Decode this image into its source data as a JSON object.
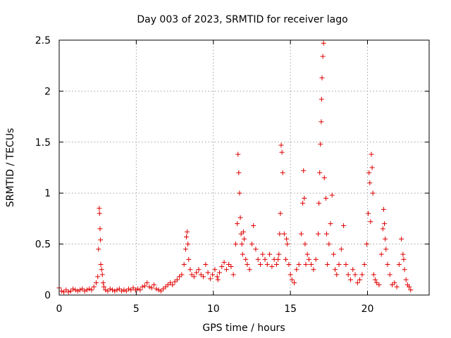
{
  "chart_data": {
    "type": "scatter",
    "title": "Day 003 of 2023, SRMTID for receiver lago",
    "xlabel": "GPS time / hours",
    "ylabel": "SRMTID / TECUs",
    "xlim": [
      0,
      24
    ],
    "ylim": [
      0,
      2.5
    ],
    "grid": true,
    "marker": "+",
    "color": "#e00000",
    "x_ticks": [
      0,
      5,
      10,
      15,
      20
    ],
    "x_tick_labels": [
      "0",
      "5",
      "10",
      "15",
      "20"
    ],
    "y_ticks": [
      0,
      0.5,
      1,
      1.5,
      2,
      2.5
    ],
    "y_tick_labels": [
      "0",
      "0.5",
      "1",
      "1.5",
      "2",
      "2.5"
    ],
    "series": [
      {
        "name": "SRMTID",
        "x": [
          0.0,
          0.15,
          0.3,
          0.45,
          0.6,
          0.75,
          0.9,
          1.05,
          1.2,
          1.35,
          1.5,
          1.65,
          1.8,
          1.95,
          2.1,
          2.25,
          2.4,
          2.5,
          2.55,
          2.6,
          2.62,
          2.65,
          2.68,
          2.7,
          2.75,
          2.8,
          2.85,
          2.9,
          3.0,
          3.15,
          3.3,
          3.45,
          3.6,
          3.75,
          3.9,
          4.05,
          4.2,
          4.35,
          4.5,
          4.65,
          4.8,
          4.95,
          5.1,
          5.25,
          5.4,
          5.55,
          5.7,
          5.85,
          6.0,
          6.15,
          6.3,
          6.45,
          6.6,
          6.75,
          6.9,
          7.05,
          7.2,
          7.35,
          7.5,
          7.65,
          7.8,
          7.95,
          8.1,
          8.2,
          8.25,
          8.3,
          8.35,
          8.4,
          8.5,
          8.6,
          8.75,
          8.9,
          9.05,
          9.2,
          9.35,
          9.5,
          9.65,
          9.8,
          9.95,
          10.1,
          10.25,
          10.3,
          10.4,
          10.55,
          10.7,
          10.85,
          11.0,
          11.15,
          11.3,
          11.45,
          11.55,
          11.6,
          11.65,
          11.7,
          11.75,
          11.8,
          11.85,
          11.9,
          11.95,
          12.0,
          12.1,
          12.2,
          12.35,
          12.5,
          12.6,
          12.75,
          12.9,
          13.05,
          13.2,
          13.35,
          13.5,
          13.65,
          13.8,
          13.95,
          14.1,
          14.2,
          14.25,
          14.3,
          14.35,
          14.4,
          14.45,
          14.5,
          14.6,
          14.7,
          14.75,
          14.8,
          14.9,
          15.0,
          15.1,
          15.25,
          15.4,
          15.55,
          15.7,
          15.8,
          15.85,
          15.9,
          15.95,
          16.0,
          16.1,
          16.2,
          16.35,
          16.5,
          16.65,
          16.8,
          16.85,
          16.9,
          16.95,
          17.0,
          17.02,
          17.05,
          17.1,
          17.15,
          17.2,
          17.3,
          17.35,
          17.4,
          17.5,
          17.6,
          17.7,
          17.8,
          17.9,
          18.0,
          18.15,
          18.3,
          18.45,
          18.6,
          18.75,
          18.9,
          19.05,
          19.2,
          19.35,
          19.5,
          19.65,
          19.8,
          19.95,
          20.05,
          20.1,
          20.15,
          20.2,
          20.25,
          20.3,
          20.35,
          20.4,
          20.5,
          20.6,
          20.75,
          20.9,
          21.0,
          21.05,
          21.1,
          21.15,
          21.2,
          21.3,
          21.45,
          21.6,
          21.75,
          21.9,
          22.05,
          22.2,
          22.3,
          22.35,
          22.4,
          22.5,
          22.6,
          22.7,
          22.8
        ],
        "values": [
          0.07,
          0.04,
          0.03,
          0.05,
          0.03,
          0.04,
          0.06,
          0.05,
          0.04,
          0.05,
          0.06,
          0.04,
          0.05,
          0.06,
          0.05,
          0.08,
          0.12,
          0.18,
          0.45,
          0.85,
          0.8,
          0.65,
          0.54,
          0.3,
          0.25,
          0.2,
          0.12,
          0.08,
          0.05,
          0.04,
          0.06,
          0.05,
          0.04,
          0.05,
          0.06,
          0.04,
          0.05,
          0.04,
          0.06,
          0.05,
          0.07,
          0.05,
          0.06,
          0.05,
          0.08,
          0.09,
          0.12,
          0.08,
          0.07,
          0.1,
          0.06,
          0.05,
          0.04,
          0.06,
          0.08,
          0.1,
          0.12,
          0.1,
          0.13,
          0.15,
          0.18,
          0.2,
          0.3,
          0.45,
          0.57,
          0.62,
          0.5,
          0.35,
          0.25,
          0.2,
          0.18,
          0.22,
          0.25,
          0.2,
          0.18,
          0.3,
          0.22,
          0.16,
          0.2,
          0.25,
          0.18,
          0.15,
          0.22,
          0.28,
          0.32,
          0.25,
          0.3,
          0.28,
          0.2,
          0.5,
          0.7,
          1.38,
          1.2,
          1.0,
          0.76,
          0.6,
          0.5,
          0.4,
          0.62,
          0.55,
          0.35,
          0.3,
          0.25,
          0.5,
          0.68,
          0.45,
          0.35,
          0.3,
          0.4,
          0.35,
          0.3,
          0.4,
          0.28,
          0.35,
          0.3,
          0.35,
          0.4,
          0.6,
          0.8,
          1.47,
          1.4,
          1.2,
          0.6,
          0.35,
          0.55,
          0.5,
          0.3,
          0.2,
          0.15,
          0.12,
          0.25,
          0.3,
          0.6,
          0.9,
          1.22,
          0.95,
          0.5,
          0.3,
          0.4,
          0.35,
          0.3,
          0.25,
          0.35,
          0.6,
          0.9,
          1.2,
          1.48,
          1.7,
          1.92,
          2.13,
          2.34,
          2.47,
          1.15,
          0.95,
          0.6,
          0.3,
          0.5,
          0.7,
          0.98,
          0.4,
          0.25,
          0.2,
          0.3,
          0.45,
          0.68,
          0.3,
          0.2,
          0.15,
          0.25,
          0.2,
          0.12,
          0.15,
          0.2,
          0.3,
          0.5,
          0.8,
          1.2,
          1.1,
          0.72,
          1.38,
          1.25,
          1.0,
          0.2,
          0.15,
          0.12,
          0.1,
          0.4,
          0.65,
          0.84,
          0.7,
          0.55,
          0.45,
          0.3,
          0.2,
          0.1,
          0.12,
          0.08,
          0.3,
          0.55,
          0.4,
          0.35,
          0.25,
          0.15,
          0.1,
          0.08,
          0.05
        ]
      }
    ]
  }
}
